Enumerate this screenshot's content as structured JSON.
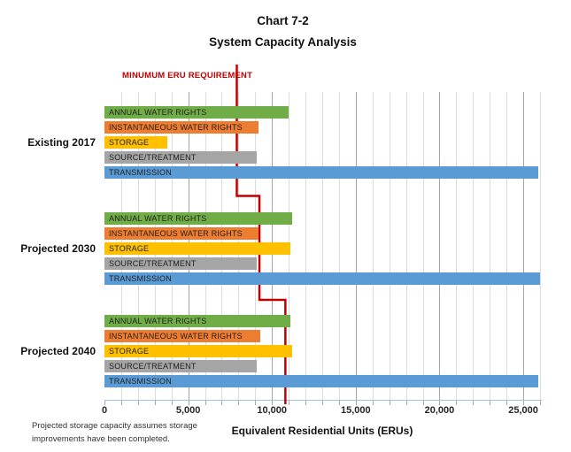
{
  "title": {
    "line1": "Chart 7-2",
    "line2": "System Capacity Analysis"
  },
  "chart_data": {
    "type": "bar",
    "orientation": "horizontal",
    "xlabel": "Equivalent Residential Units (ERUs)",
    "xlim": [
      0,
      26000
    ],
    "x_ticks": [
      0,
      5000,
      10000,
      15000,
      20000,
      25000
    ],
    "x_tick_labels": [
      "0",
      "5,000",
      "10,000",
      "15,000",
      "20,000",
      "25,000"
    ],
    "minor_grid_step": 1000,
    "major_grid_step": 5000,
    "grid": true,
    "legend_position": "none",
    "categories": [
      "Existing 2017",
      "Projected 2030",
      "Projected 2040"
    ],
    "groups": [
      {
        "label": "Existing 2017",
        "bars": [
          {
            "name": "ANNUAL WATER RIGHTS",
            "value": 11000,
            "color": "#70AD47"
          },
          {
            "name": "INSTANTANEOUS WATER RIGHTS",
            "value": 9200,
            "color": "#ED7D31"
          },
          {
            "name": "STORAGE",
            "value": 3750,
            "color": "#FFC000"
          },
          {
            "name": "SOURCE/TREATMENT",
            "value": 9100,
            "color": "#A5A5A5"
          },
          {
            "name": "TRANSMISSION",
            "value": 25900,
            "color": "#5B9BD5"
          }
        ]
      },
      {
        "label": "Projected 2030",
        "bars": [
          {
            "name": "ANNUAL WATER RIGHTS",
            "value": 11200,
            "color": "#70AD47"
          },
          {
            "name": "INSTANTANEOUS WATER RIGHTS",
            "value": 9200,
            "color": "#ED7D31"
          },
          {
            "name": "STORAGE",
            "value": 11100,
            "color": "#FFC000"
          },
          {
            "name": "SOURCE/TREATMENT",
            "value": 9100,
            "color": "#A5A5A5"
          },
          {
            "name": "TRANSMISSION",
            "value": 26000,
            "color": "#5B9BD5"
          }
        ]
      },
      {
        "label": "Projected 2040",
        "bars": [
          {
            "name": "ANNUAL WATER RIGHTS",
            "value": 11100,
            "color": "#70AD47"
          },
          {
            "name": "INSTANTANEOUS WATER RIGHTS",
            "value": 9300,
            "color": "#ED7D31"
          },
          {
            "name": "STORAGE",
            "value": 11200,
            "color": "#FFC000"
          },
          {
            "name": "SOURCE/TREATMENT",
            "value": 9100,
            "color": "#A5A5A5"
          },
          {
            "name": "TRANSMISSION",
            "value": 25900,
            "color": "#5B9BD5"
          }
        ]
      }
    ],
    "threshold_line": {
      "label": "MINUMUM ERU REQUIREMENT",
      "color": "#C00000",
      "values_per_group": [
        7900,
        9250,
        10800
      ]
    }
  },
  "footnote": {
    "line1": "Projected storage capacity assumes storage",
    "line2": "improvements  have been completed."
  },
  "colors": {
    "annual_water_rights": "#70AD47",
    "instantaneous_water_rights": "#ED7D31",
    "storage": "#FFC000",
    "source_treatment": "#A5A5A5",
    "transmission": "#5B9BD5",
    "threshold": "#C00000",
    "minor_grid": "#DCDCDC",
    "major_grid": "#A6A6A6",
    "axis_line": "#9CC2E5"
  }
}
